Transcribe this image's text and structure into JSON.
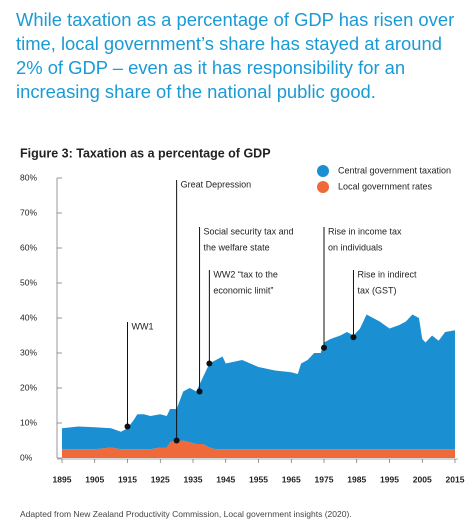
{
  "header": "While taxation as a percentage of GDP has risen over time, local government’s share has stayed at around 2% of GDP – even as it has responsibility for an increasing share of the national public good.",
  "chart_data": {
    "type": "area",
    "stacked": true,
    "title": "Figure 3: Taxation as a percentage of GDP",
    "x": [
      1895,
      1900,
      1905,
      1910,
      1913,
      1915,
      1917,
      1918,
      1920,
      1922,
      1925,
      1927,
      1928,
      1930,
      1932,
      1934,
      1936,
      1938,
      1940,
      1942,
      1944,
      1945,
      1950,
      1955,
      1960,
      1965,
      1967,
      1968,
      1970,
      1972,
      1974,
      1975,
      1977,
      1980,
      1982,
      1984,
      1986,
      1988,
      1990,
      1992,
      1995,
      1998,
      2000,
      2002,
      2004,
      2005,
      2006,
      2008,
      2010,
      2012,
      2015
    ],
    "series": [
      {
        "name": "Local government rates",
        "color": "#ef6a3a",
        "values": [
          2.5,
          2.5,
          2.5,
          3,
          2.5,
          2.5,
          2.5,
          2.5,
          2.5,
          2.5,
          3,
          3,
          4.5,
          5,
          5,
          4.5,
          4,
          4,
          3,
          2.5,
          2.5,
          2.5,
          2.5,
          2.5,
          2.5,
          2.5,
          2.5,
          2.5,
          2.5,
          2.5,
          2.5,
          2.5,
          2.5,
          2.5,
          2.5,
          2.5,
          2.5,
          2.5,
          2.5,
          2.5,
          2.5,
          2.5,
          2.5,
          2.5,
          2.5,
          2.5,
          2.5,
          2.5,
          2.5,
          2.5,
          2.5
        ]
      },
      {
        "name": "Central government taxation",
        "color": "#1a8fd2",
        "values": [
          6,
          6.5,
          6.3,
          5.5,
          5,
          6,
          8.5,
          10,
          10,
          9.5,
          9.5,
          9,
          9.5,
          9,
          14,
          15.5,
          15,
          19,
          24,
          25.5,
          26.5,
          24.5,
          25.5,
          23.5,
          22.5,
          22,
          21.5,
          24.5,
          25.5,
          27.5,
          27.5,
          30.5,
          31.5,
          32.5,
          33.5,
          32.5,
          34.5,
          38.5,
          37.5,
          36.5,
          34.5,
          35.5,
          36.5,
          38.5,
          37.5,
          31.5,
          30.5,
          32.5,
          31,
          33.5,
          34
        ]
      }
    ],
    "legend_order": [
      1,
      0
    ],
    "xlim": [
      1895,
      2015
    ],
    "xticks": [
      1895,
      1905,
      1915,
      1925,
      1935,
      1945,
      1955,
      1965,
      1975,
      1985,
      1995,
      2005,
      2015
    ],
    "ylim": [
      0,
      80
    ],
    "yticks": [
      {
        "value": 0,
        "label": "0%"
      },
      {
        "value": 10,
        "label": "10%"
      },
      {
        "value": 20,
        "label": "20%"
      },
      {
        "value": 30,
        "label": "30%"
      },
      {
        "value": 40,
        "label": "40%"
      },
      {
        "value": 50,
        "label": "50%"
      },
      {
        "value": 60,
        "label": "60%"
      },
      {
        "value": 70,
        "label": "70%"
      },
      {
        "value": 80,
        "label": "80%"
      }
    ],
    "annotations": [
      {
        "lines": [
          "WW1"
        ],
        "x": 1915,
        "y": 9
      },
      {
        "lines": [
          "Great Depression"
        ],
        "x": 1930,
        "y": 5
      },
      {
        "lines": [
          "Social security tax and",
          "the welfare state"
        ],
        "x": 1937,
        "y": 19
      },
      {
        "lines": [
          "WW2 “tax to the",
          "economic limit”"
        ],
        "x": 1940,
        "y": 27
      },
      {
        "lines": [
          "Rise in income tax",
          "on individuals"
        ],
        "x": 1975,
        "y": 31.5
      },
      {
        "lines": [
          "Rise in indirect",
          "tax (GST)"
        ],
        "x": 1984,
        "y": 34.5
      }
    ]
  },
  "source": "Adapted from New Zealand Productivity Commission, Local government insights (2020)."
}
